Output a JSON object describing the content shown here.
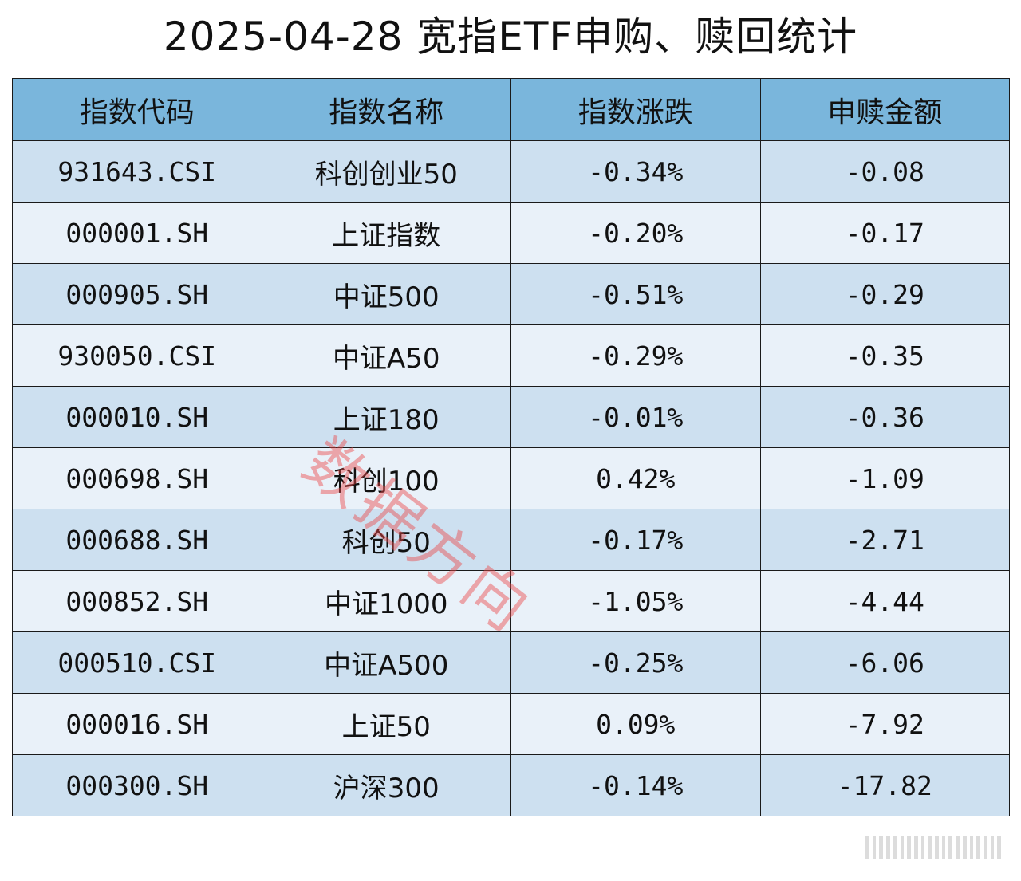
{
  "title": "2025-04-28 宽指ETF申购、赎回统计",
  "table": {
    "headers": [
      "指数代码",
      "指数名称",
      "指数涨跌",
      "申赎金额"
    ],
    "rows": [
      {
        "code": "931643.CSI",
        "name": "科创创业50",
        "change": "-0.34%",
        "amount": "-0.08"
      },
      {
        "code": "000001.SH",
        "name": "上证指数",
        "change": "-0.20%",
        "amount": "-0.17"
      },
      {
        "code": "000905.SH",
        "name": "中证500",
        "change": "-0.51%",
        "amount": "-0.29"
      },
      {
        "code": "930050.CSI",
        "name": "中证A50",
        "change": "-0.29%",
        "amount": "-0.35"
      },
      {
        "code": "000010.SH",
        "name": "上证180",
        "change": "-0.01%",
        "amount": "-0.36"
      },
      {
        "code": "000698.SH",
        "name": "科创100",
        "change": "0.42%",
        "amount": "-1.09"
      },
      {
        "code": "000688.SH",
        "name": "科创50",
        "change": "-0.17%",
        "amount": "-2.71"
      },
      {
        "code": "000852.SH",
        "name": "中证1000",
        "change": "-1.05%",
        "amount": "-4.44"
      },
      {
        "code": "000510.CSI",
        "name": "中证A500",
        "change": "-0.25%",
        "amount": "-6.06"
      },
      {
        "code": "000016.SH",
        "name": "上证50",
        "change": "0.09%",
        "amount": "-7.92"
      },
      {
        "code": "000300.SH",
        "name": "沪深300",
        "change": "-0.14%",
        "amount": "-17.82"
      }
    ]
  },
  "watermark": "数据方向",
  "colors": {
    "header_bg": "#7ab6dc",
    "row_odd": "#cde0f0",
    "row_even": "#e9f1f9",
    "watermark": "#ec4646"
  }
}
